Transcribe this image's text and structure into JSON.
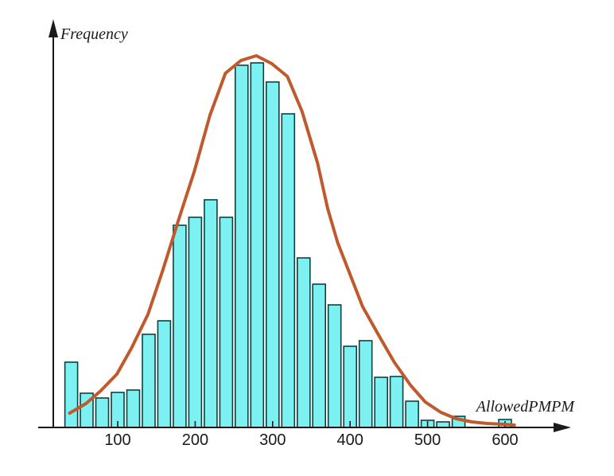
{
  "chart_data": {
    "type": "bar",
    "subtype": "histogram with fitted normal curve",
    "title": "",
    "xlabel": "AllowedPMPM",
    "ylabel": "Frequency",
    "x_tick_labels": [
      "100",
      "200",
      "300",
      "400",
      "500",
      "600"
    ],
    "x_ticks": [
      100,
      200,
      300,
      400,
      500,
      600
    ],
    "bin_width": 20,
    "categories": [
      40,
      60,
      80,
      100,
      120,
      140,
      160,
      180,
      200,
      220,
      240,
      260,
      280,
      300,
      320,
      340,
      360,
      380,
      400,
      420,
      440,
      460,
      480,
      500,
      520,
      540,
      560,
      580,
      600
    ],
    "values": [
      82,
      43,
      37,
      44,
      47,
      117,
      134,
      254,
      264,
      286,
      264,
      455,
      458,
      434,
      394,
      213,
      180,
      154,
      102,
      109,
      63,
      64,
      33,
      9,
      7,
      14,
      0,
      0,
      10
    ],
    "series": [
      {
        "name": "frequency-histogram",
        "kind": "bar"
      },
      {
        "name": "fitted-normal-curve",
        "kind": "line",
        "points": [
          [
            38,
            18
          ],
          [
            59,
            30
          ],
          [
            78,
            46
          ],
          [
            99,
            67
          ],
          [
            118,
            100
          ],
          [
            139,
            142
          ],
          [
            158,
            197
          ],
          [
            179,
            262
          ],
          [
            199,
            322
          ],
          [
            219,
            392
          ],
          [
            239,
            445
          ],
          [
            259,
            461
          ],
          [
            279,
            467
          ],
          [
            299,
            457
          ],
          [
            319,
            441
          ],
          [
            338,
            397
          ],
          [
            358,
            332
          ],
          [
            371,
            275
          ],
          [
            384,
            232
          ],
          [
            398,
            197
          ],
          [
            416,
            152
          ],
          [
            438,
            114
          ],
          [
            457,
            82
          ],
          [
            478,
            53
          ],
          [
            497,
            32
          ],
          [
            517,
            19
          ],
          [
            537,
            11
          ],
          [
            557,
            7
          ],
          [
            577,
            5
          ],
          [
            597,
            4
          ],
          [
            612,
            3
          ]
        ]
      }
    ],
    "xlim": [
      0,
      685
    ],
    "ylim": [
      0,
      500
    ],
    "grid": false,
    "legend": null,
    "y_axis_ticks_shown": false,
    "colors": {
      "bar_fill": "#7df1f1",
      "bar_border": "#0e4040",
      "curve": "#c05a2c",
      "axis": "#1a1a1a",
      "text": "#1a1a1a",
      "background": "#ffffff"
    }
  }
}
